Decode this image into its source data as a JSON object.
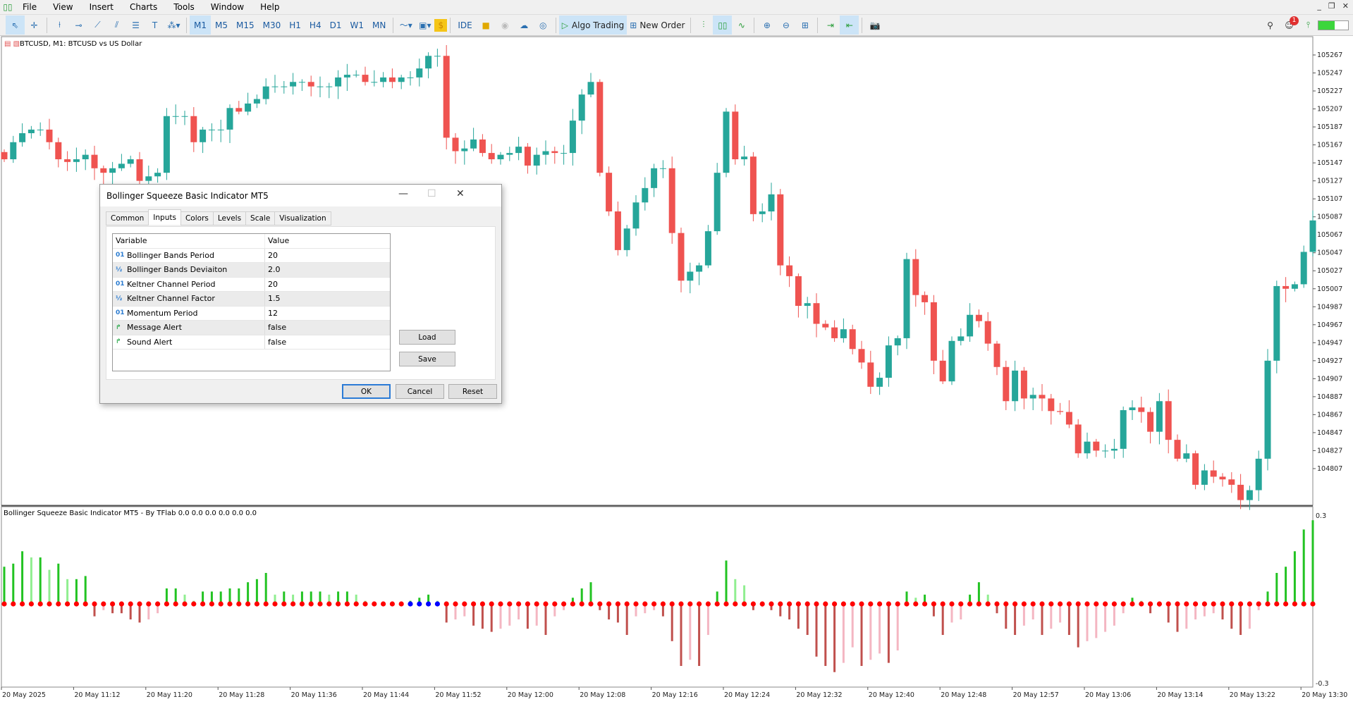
{
  "menu": {
    "items": [
      "File",
      "View",
      "Insert",
      "Charts",
      "Tools",
      "Window",
      "Help"
    ]
  },
  "toolbar": {
    "timeframes": [
      "M1",
      "M5",
      "M15",
      "M30",
      "H1",
      "H4",
      "D1",
      "W1",
      "MN"
    ],
    "active_timeframe": "M1",
    "ide": "IDE",
    "algo_trading": "Algo Trading",
    "new_order": "New Order",
    "notification_count": "1"
  },
  "chart": {
    "title": "BTCUSD, M1:  BTCUSD vs US Dollar",
    "price_labels": [
      "105267",
      "105247",
      "105227",
      "105207",
      "105187",
      "105167",
      "105147",
      "105127",
      "105107",
      "105087",
      "105067",
      "105047",
      "105027",
      "105007",
      "104987",
      "104967",
      "104947",
      "104927",
      "104907",
      "104887",
      "104867",
      "104847",
      "104827",
      "104807"
    ],
    "time_labels": [
      "20 May 2025",
      "20 May 11:12",
      "20 May 11:20",
      "20 May 11:28",
      "20 May 11:36",
      "20 May 11:44",
      "20 May 11:52",
      "20 May 12:00",
      "20 May 12:08",
      "20 May 12:16",
      "20 May 12:24",
      "20 May 12:32",
      "20 May 12:40",
      "20 May 12:48",
      "20 May 12:57",
      "20 May 13:06",
      "20 May 13:14",
      "20 May 13:22",
      "20 May 13:30"
    ],
    "bull_color": "#26a69a",
    "bear_color": "#ef5350"
  },
  "chart_data": [
    {
      "type": "candlestick",
      "title": "BTCUSD, M1:  BTCUSD vs US Dollar",
      "ylim": [
        104772,
        105275
      ],
      "close": [
        105151,
        105170,
        105180,
        105184,
        105184,
        105170,
        105151,
        105148,
        105151,
        105156,
        105141,
        105136,
        105141,
        105146,
        105151,
        105127,
        105132,
        105136,
        105199,
        105199,
        105199,
        105170,
        105184,
        105184,
        105184,
        105208,
        105204,
        105213,
        105218,
        105232,
        105232,
        105232,
        105237,
        105237,
        105232,
        105232,
        105232,
        105242,
        105245,
        105245,
        105237,
        105237,
        105242,
        105237,
        105242,
        105242,
        105252,
        105266,
        105266,
        105175,
        105160,
        105163,
        105173,
        105158,
        105151,
        105156,
        105158,
        105165,
        105144,
        105156,
        105160,
        105158,
        105158,
        105194,
        105223,
        105237,
        105136,
        105093,
        105050,
        105074,
        105103,
        105119,
        105141,
        105141,
        105069,
        105016,
        105026,
        105033,
        105071,
        105136,
        105204,
        105151,
        105154,
        105090,
        105093,
        105112,
        105033,
        105021,
        104988,
        104991,
        104968,
        104964,
        104952,
        104962,
        104940,
        104925,
        104898,
        104908,
        104944,
        104952,
        105040,
        105000,
        104992,
        104927,
        104904,
        104949,
        104954,
        104978,
        104971,
        104946,
        104920,
        104882,
        104916,
        104885,
        104889,
        104885,
        104871,
        104870,
        104856,
        104824,
        104837,
        104827,
        104827,
        104829,
        104872,
        104875,
        104870,
        104848,
        104882,
        104839,
        104818,
        104824,
        104789,
        104805,
        104798,
        104795,
        104789,
        104772,
        104783,
        104818,
        104927,
        105010,
        105007,
        105012,
        105048,
        105083
      ]
    },
    {
      "type": "bar",
      "title": "Bollinger Squeeze Basic Indicator MT5 - By TFlab 0.0 0.0 0.0 0.0 0.0 0.0",
      "ylim": [
        -0.3,
        0.3
      ],
      "ytick_labels": [
        "0.3",
        "-0.3"
      ],
      "values": [
        0.12,
        0.13,
        0.17,
        0.15,
        0.15,
        0.11,
        0.13,
        0.08,
        0.08,
        0.09,
        -0.04,
        -0.02,
        -0.03,
        -0.03,
        -0.05,
        -0.06,
        -0.05,
        -0.03,
        0.05,
        0.05,
        0.03,
        0.01,
        0.04,
        0.04,
        0.04,
        0.05,
        0.05,
        0.07,
        0.08,
        0.1,
        0.03,
        0.04,
        0.03,
        0.04,
        0.04,
        0.04,
        0.03,
        0.04,
        0.04,
        0.03,
        0.01,
        0.005,
        0.003,
        0.002,
        0.003,
        0.01,
        0.02,
        0.03,
        0.01,
        -0.06,
        -0.05,
        -0.04,
        -0.07,
        -0.08,
        -0.09,
        -0.08,
        -0.07,
        -0.05,
        -0.08,
        -0.07,
        -0.1,
        -0.04,
        -0.02,
        0.02,
        0.05,
        0.07,
        -0.02,
        -0.05,
        -0.06,
        -0.1,
        -0.04,
        -0.03,
        -0.02,
        -0.04,
        -0.12,
        -0.2,
        -0.18,
        -0.2,
        -0.1,
        0.04,
        0.14,
        0.08,
        0.06,
        -0.02,
        -0.01,
        -0.02,
        -0.04,
        -0.05,
        -0.08,
        -0.1,
        -0.17,
        -0.2,
        -0.22,
        -0.19,
        -0.14,
        -0.2,
        -0.18,
        -0.16,
        -0.19,
        -0.15,
        0.04,
        0.02,
        0.03,
        -0.04,
        -0.1,
        -0.06,
        -0.05,
        0.03,
        0.07,
        0.03,
        -0.03,
        -0.08,
        -0.1,
        -0.07,
        -0.05,
        -0.1,
        -0.08,
        -0.06,
        -0.1,
        -0.14,
        -0.12,
        -0.11,
        -0.09,
        -0.07,
        -0.03,
        0.02,
        0.01,
        -0.03,
        -0.01,
        -0.06,
        -0.09,
        -0.08,
        -0.05,
        -0.04,
        -0.03,
        -0.05,
        -0.08,
        -0.1,
        -0.08,
        -0.02,
        0.04,
        0.1,
        0.12,
        0.17,
        0.24,
        0.27
      ],
      "squeeze_on_indices": [
        45,
        46,
        47,
        48
      ],
      "colors": {
        "pos_up": "#22c322",
        "pos_down": "#90ee90",
        "neg_down": "#c0504d",
        "neg_up": "#f4b6c2",
        "dot_off": "#ff0000",
        "dot_on": "#0000ff"
      }
    }
  ],
  "dialog": {
    "title": "Bollinger Squeeze Basic Indicator MT5",
    "tabs": [
      "Common",
      "Inputs",
      "Colors",
      "Levels",
      "Scale",
      "Visualization"
    ],
    "active_tab": "Inputs",
    "columns": [
      "Variable",
      "Value"
    ],
    "rows": [
      {
        "type": "01",
        "variable": "Bollinger Bands Period",
        "value": "20"
      },
      {
        "type": "½",
        "variable": "Bollinger Bands Deviaiton",
        "value": "2.0"
      },
      {
        "type": "01",
        "variable": "Keltner Channel Period",
        "value": "20"
      },
      {
        "type": "½",
        "variable": "Keltner Channel Factor",
        "value": "1.5"
      },
      {
        "type": "01",
        "variable": "Momentum Period",
        "value": "12"
      },
      {
        "type": "↱",
        "variable": "Message Alert",
        "value": "false"
      },
      {
        "type": "↱",
        "variable": "Sound Alert",
        "value": "false"
      }
    ],
    "load": "Load",
    "save": "Save",
    "ok": "OK",
    "cancel": "Cancel",
    "reset": "Reset"
  }
}
